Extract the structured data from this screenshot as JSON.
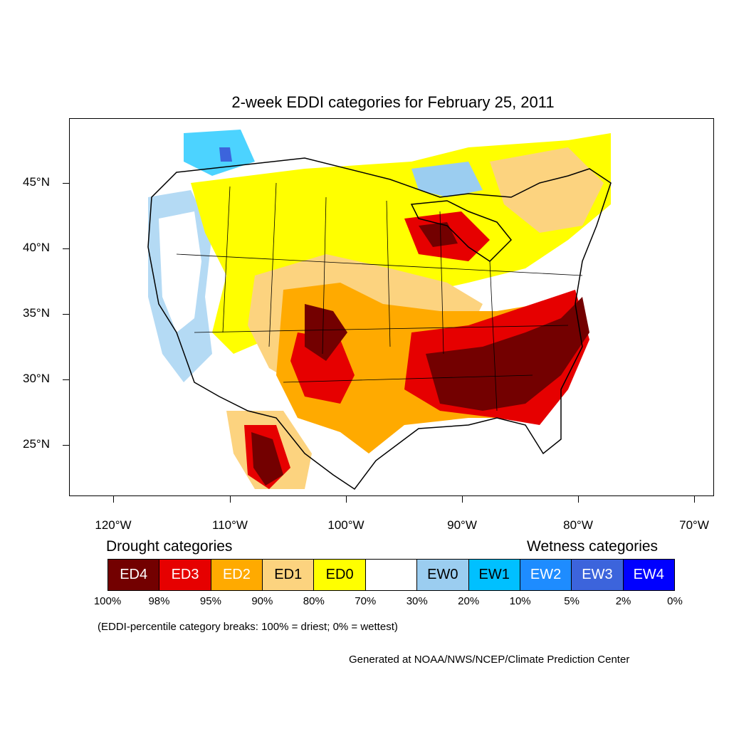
{
  "title": "2-week EDDI categories for February 25, 2011",
  "axes": {
    "lat_labels": [
      "45°N",
      "40°N",
      "35°N",
      "30°N",
      "25°N"
    ],
    "lon_labels": [
      "120°W",
      "110°W",
      "100°W",
      "90°W",
      "80°W",
      "70°W"
    ]
  },
  "legend": {
    "drought_heading": "Drought categories",
    "wetness_heading": "Wetness categories",
    "categories": [
      {
        "label": "ED4",
        "color": "#730000",
        "text_color": "#ffffff"
      },
      {
        "label": "ED3",
        "color": "#e60000",
        "text_color": "#ffffff"
      },
      {
        "label": "ED2",
        "color": "#ffaa00",
        "text_color": "#ffffff"
      },
      {
        "label": "ED1",
        "color": "#fcd37f",
        "text_color": "#000000"
      },
      {
        "label": "ED0",
        "color": "#ffff00",
        "text_color": "#000000"
      },
      {
        "label": "",
        "color": "#ffffff",
        "text_color": "#000000"
      },
      {
        "label": "EW0",
        "color": "#9bcdf0",
        "text_color": "#000000"
      },
      {
        "label": "EW1",
        "color": "#00c0ff",
        "text_color": "#000000"
      },
      {
        "label": "EW2",
        "color": "#1e8cff",
        "text_color": "#ffffff"
      },
      {
        "label": "EW3",
        "color": "#3c64dc",
        "text_color": "#ffffff"
      },
      {
        "label": "EW4",
        "color": "#0000ff",
        "text_color": "#ffffff"
      }
    ],
    "breaks": [
      "100%",
      "98%",
      "95%",
      "90%",
      "80%",
      "70%",
      "30%",
      "20%",
      "10%",
      "5%",
      "2%",
      "0%"
    ]
  },
  "note": "(EDDI-percentile category breaks: 100% = driest; 0% = wettest)",
  "credit": "Generated at NOAA/NWS/NCEP/Climate Prediction Center"
}
